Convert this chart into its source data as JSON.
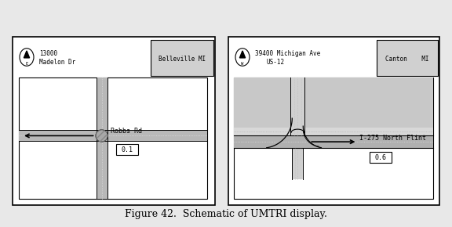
{
  "figure_caption": "Figure 42.  Schematic of UMTRI display.",
  "bg_color": "#e8e8e8",
  "panel_bg": "#ffffff",
  "road_gray": "#c0c0c0",
  "road_dark": "#909090",
  "caption_fontsize": 9,
  "label_fontsize": 6,
  "small_fontsize": 5.5,
  "panel1": {
    "street_label": "Robbs Rd",
    "distance_box": "0.1",
    "odometer": "13000",
    "street_name": "Madelon Dr",
    "city": "Belleville MI",
    "compass_dir": "E"
  },
  "panel2": {
    "street_label": "I-275 North Flint",
    "distance_box": "0.6",
    "odometer": "39400 Michigan Ave",
    "street_name": "US-12",
    "city": "Canton    MI",
    "compass_dir": "W"
  }
}
